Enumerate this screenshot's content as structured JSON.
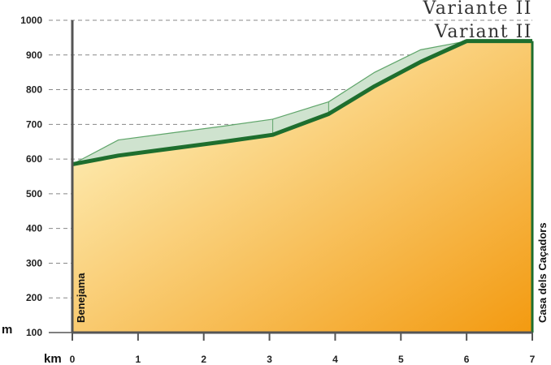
{
  "chart_data": {
    "type": "area",
    "titles": [
      "Variante II",
      "Variant II"
    ],
    "xlabel": "km",
    "ylabel": "m",
    "xlim": [
      0,
      7
    ],
    "ylim": [
      100,
      1000
    ],
    "x_ticks": [
      0,
      1,
      2,
      3,
      4,
      5,
      6,
      7
    ],
    "y_ticks": [
      100,
      200,
      300,
      400,
      500,
      600,
      700,
      800,
      900,
      1000
    ],
    "grid": "horizontal-dashed",
    "start_label": "Benejama",
    "end_label": "Casa dels Caçadors",
    "series": [
      {
        "name": "main",
        "x": [
          0,
          0.7,
          1.5,
          2.3,
          3.05,
          3.9,
          4.6,
          5.3,
          6.0,
          7.0
        ],
        "y": [
          585,
          610,
          630,
          650,
          670,
          730,
          810,
          880,
          940,
          940
        ]
      },
      {
        "name": "upper",
        "x": [
          0,
          0.7,
          1.5,
          2.3,
          3.05,
          3.9,
          4.6,
          5.3,
          6.0
        ],
        "y": [
          585,
          655,
          675,
          695,
          715,
          765,
          850,
          915,
          940
        ]
      }
    ],
    "colors": {
      "profile_line": "#1e6e2e",
      "upper_fill": "#cfe3cf",
      "upper_line": "#5fa56a",
      "gradient_start": "#fffbd0",
      "gradient_end": "#f39a10",
      "grid": "#888888",
      "axis": "#555555"
    }
  }
}
